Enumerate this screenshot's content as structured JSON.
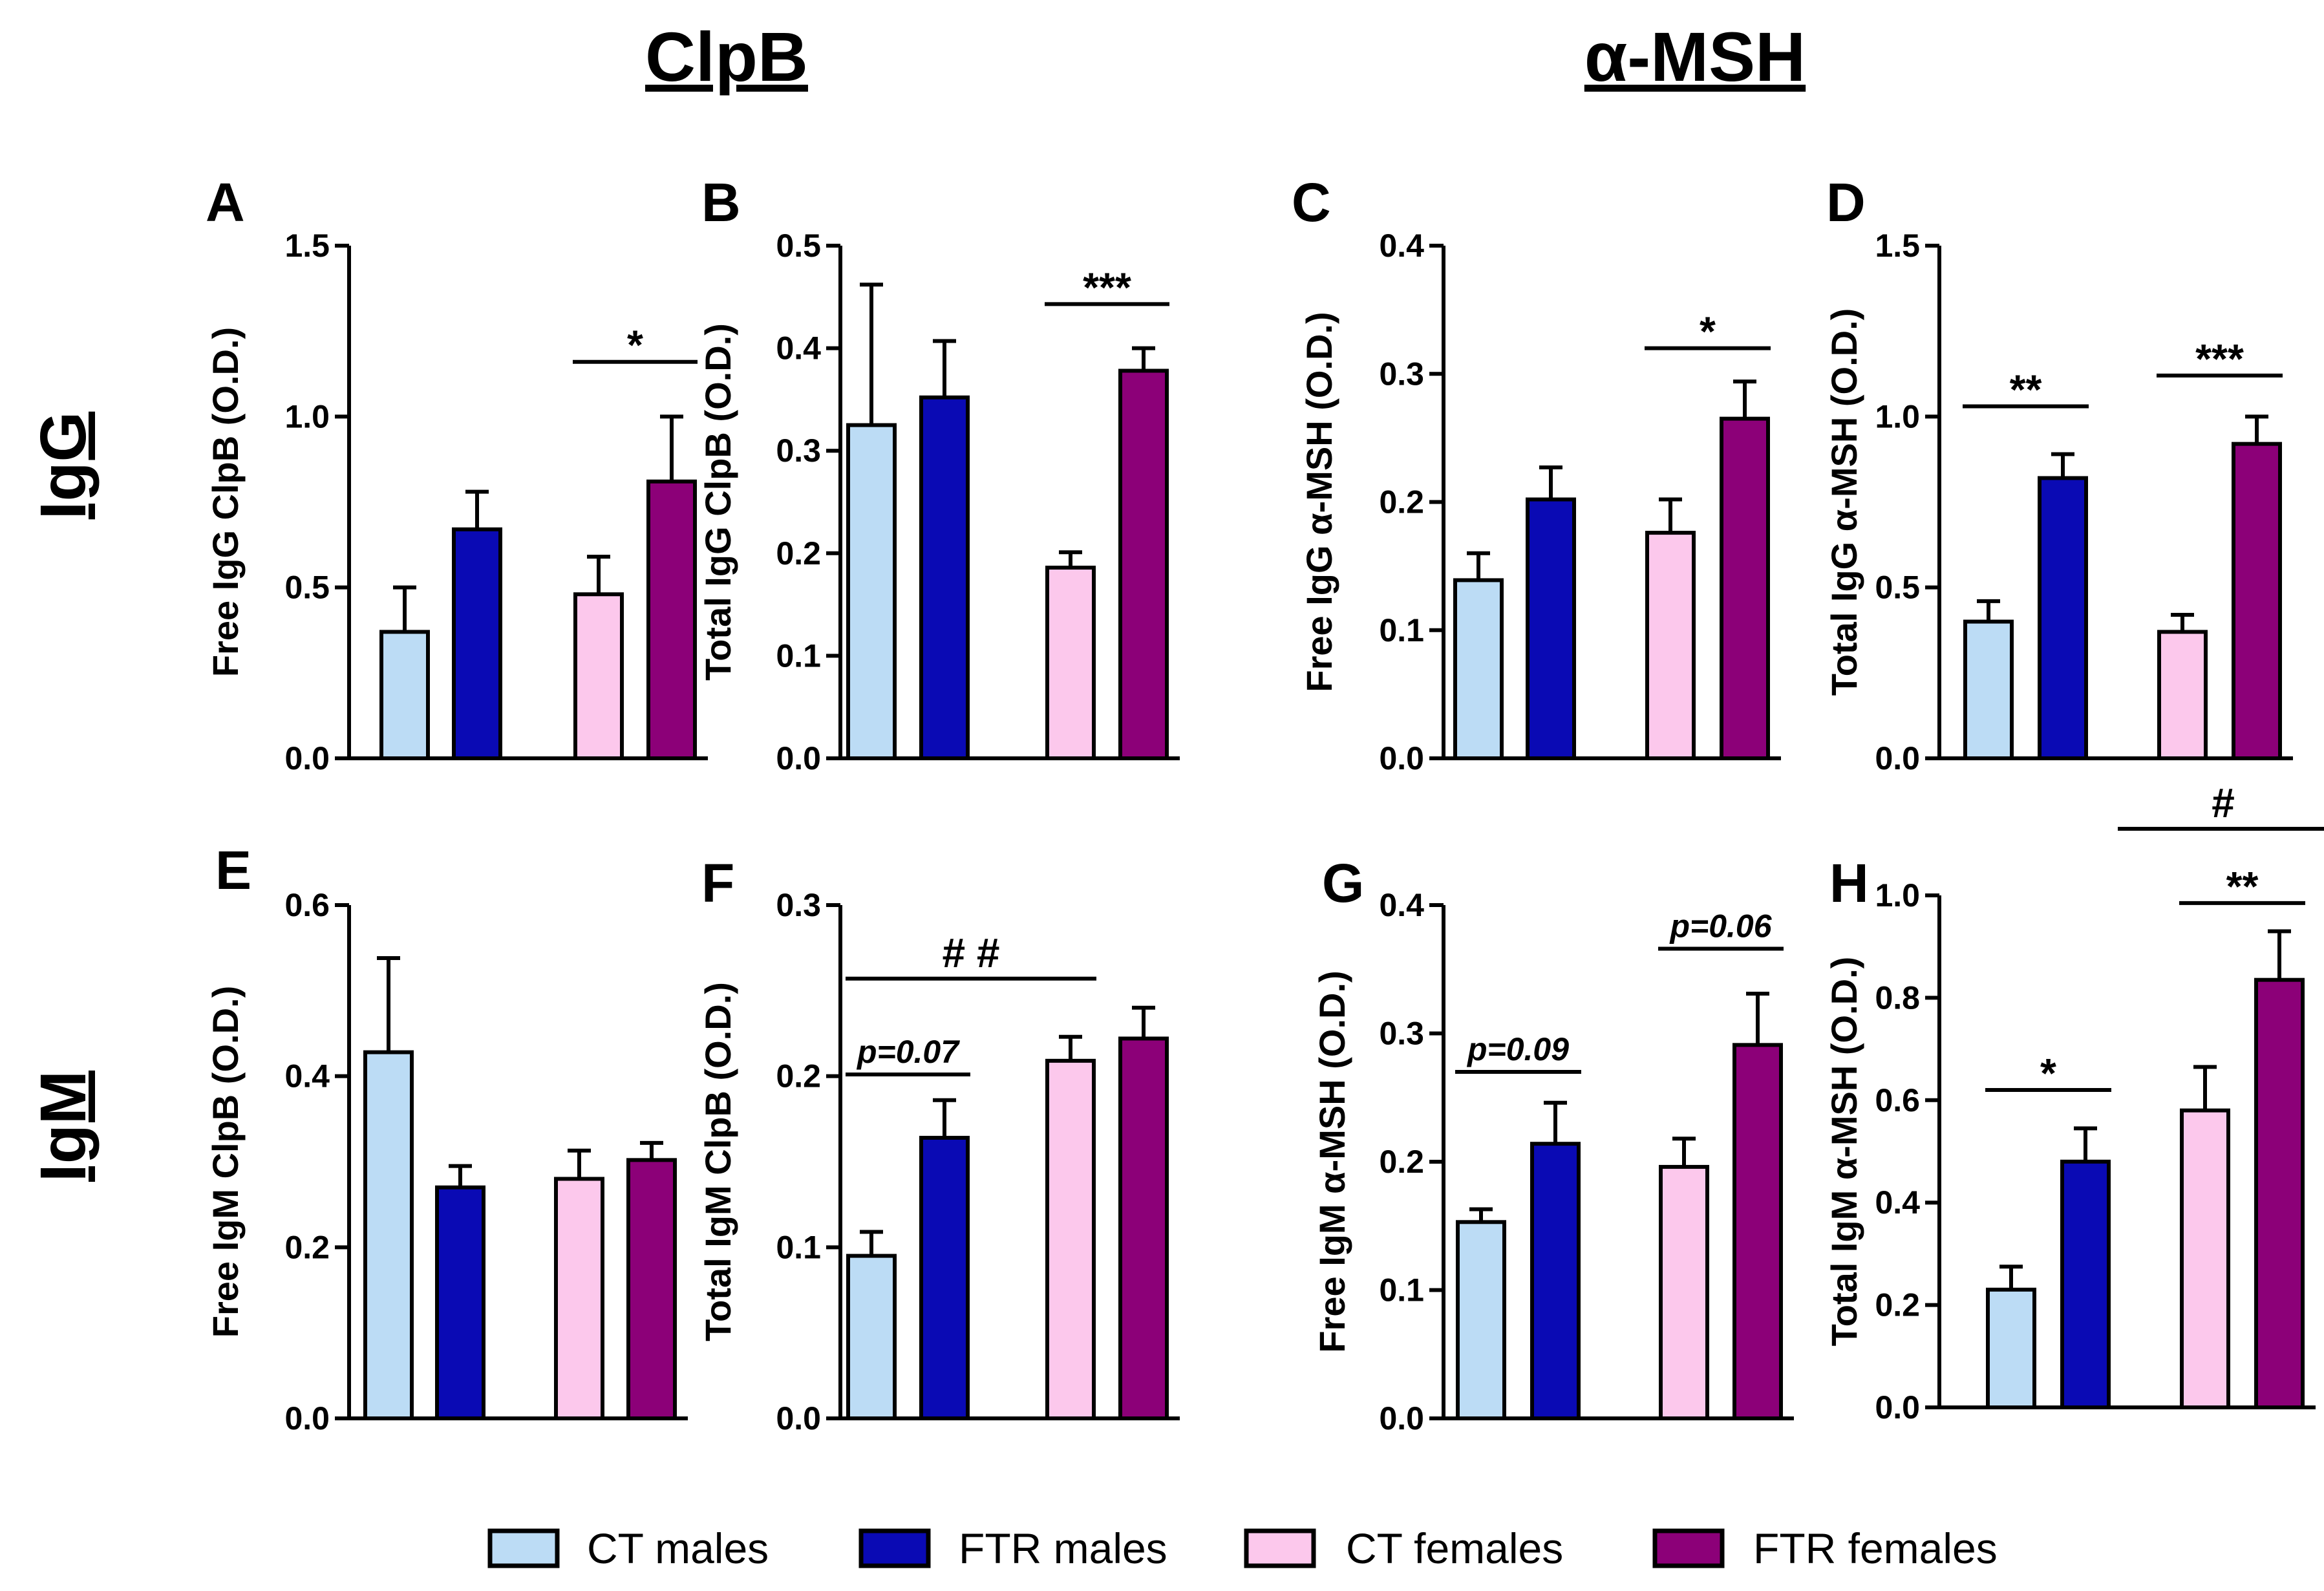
{
  "columns": {
    "left": "ClpB",
    "right": "α-MSH"
  },
  "rows": {
    "top": "IgG",
    "bottom": "IgM"
  },
  "colors": {
    "ct_males": "#bcdcf5",
    "ftr_males": "#0a0ab4",
    "ct_females": "#fcc8ec",
    "ftr_females": "#8c0078"
  },
  "legend": [
    {
      "label": "CT males",
      "color": "#bcdcf5"
    },
    {
      "label": "FTR males",
      "color": "#0a0ab4"
    },
    {
      "label": "CT females",
      "color": "#fcc8ec"
    },
    {
      "label": "FTR females",
      "color": "#8c0078"
    }
  ],
  "chart_data": [
    {
      "panel": "A",
      "type": "bar",
      "ylabel": "Free IgG ClpB (O.D.)",
      "ylim": [
        0,
        1.5
      ],
      "yticks": [
        "0.0",
        "0.5",
        "1.0",
        "1.5"
      ],
      "categories": [
        "CT males",
        "FTR males",
        "CT females",
        "FTR females"
      ],
      "values": [
        0.37,
        0.67,
        0.48,
        0.81
      ],
      "errors": [
        0.13,
        0.11,
        0.11,
        0.19
      ],
      "annotations": [
        {
          "text": "*",
          "from": 2,
          "to": 3,
          "y": 1.16
        }
      ]
    },
    {
      "panel": "B",
      "type": "bar",
      "ylabel": "Total IgG ClpB (O.D.)",
      "ylim": [
        0,
        0.5
      ],
      "yticks": [
        "0.0",
        "0.1",
        "0.2",
        "0.3",
        "0.4",
        "0.5"
      ],
      "categories": [
        "CT males",
        "FTR males",
        "CT females",
        "FTR females"
      ],
      "values": [
        0.325,
        0.352,
        0.186,
        0.378
      ],
      "errors": [
        0.137,
        0.055,
        0.015,
        0.022
      ],
      "annotations": [
        {
          "text": "***",
          "from": 2,
          "to": 3,
          "y": 0.443
        }
      ]
    },
    {
      "panel": "C",
      "type": "bar",
      "ylabel": "Free IgG α-MSH (O.D.)",
      "ylim": [
        0,
        0.4
      ],
      "yticks": [
        "0.0",
        "0.1",
        "0.2",
        "0.3",
        "0.4"
      ],
      "categories": [
        "CT males",
        "FTR males",
        "CT females",
        "FTR females"
      ],
      "values": [
        0.139,
        0.202,
        0.176,
        0.265
      ],
      "errors": [
        0.021,
        0.025,
        0.026,
        0.029
      ],
      "annotations": [
        {
          "text": "*",
          "from": 2,
          "to": 3,
          "y": 0.32
        }
      ]
    },
    {
      "panel": "D",
      "type": "bar",
      "ylabel": "Total IgG α-MSH (O.D.)",
      "ylim": [
        0,
        1.5
      ],
      "yticks": [
        "0.0",
        "0.5",
        "1.0",
        "1.5"
      ],
      "categories": [
        "CT males",
        "FTR males",
        "CT females",
        "FTR females"
      ],
      "values": [
        0.4,
        0.82,
        0.37,
        0.92
      ],
      "errors": [
        0.06,
        0.07,
        0.05,
        0.08
      ],
      "annotations": [
        {
          "text": "**",
          "from": 0,
          "to": 1,
          "y": 1.03
        },
        {
          "text": "***",
          "from": 2,
          "to": 3,
          "y": 1.12
        }
      ]
    },
    {
      "panel": "E",
      "type": "bar",
      "ylabel": "Free IgM ClpB (O.D.)",
      "ylim": [
        0,
        0.6
      ],
      "yticks": [
        "0.0",
        "0.2",
        "0.4",
        "0.6"
      ],
      "categories": [
        "CT males",
        "FTR males",
        "CT females",
        "FTR females"
      ],
      "values": [
        0.428,
        0.27,
        0.28,
        0.302
      ],
      "errors": [
        0.11,
        0.025,
        0.033,
        0.02
      ],
      "annotations": []
    },
    {
      "panel": "F",
      "type": "bar",
      "ylabel": "Total IgM ClpB (O.D.)",
      "ylim": [
        0,
        0.3
      ],
      "yticks": [
        "0.0",
        "0.1",
        "0.2",
        "0.3"
      ],
      "categories": [
        "CT males",
        "FTR males",
        "CT females",
        "FTR females"
      ],
      "values": [
        0.095,
        0.164,
        0.209,
        0.222
      ],
      "errors": [
        0.014,
        0.022,
        0.014,
        0.018
      ],
      "annotations": [
        {
          "text": "p=0.07",
          "from": 0,
          "to": 1,
          "y": 0.201,
          "italic": true
        },
        {
          "text": "# #",
          "from": 0,
          "to": 2,
          "y": 0.257
        }
      ]
    },
    {
      "panel": "G",
      "type": "bar",
      "ylabel": "Free IgM α-MSH (O.D.)",
      "ylim": [
        0,
        0.4
      ],
      "yticks": [
        "0.0",
        "0.1",
        "0.2",
        "0.3",
        "0.4"
      ],
      "categories": [
        "CT males",
        "FTR males",
        "CT females",
        "FTR females"
      ],
      "values": [
        0.153,
        0.214,
        0.196,
        0.291
      ],
      "errors": [
        0.01,
        0.032,
        0.022,
        0.04
      ],
      "annotations": [
        {
          "text": "p=0.09",
          "from": 0,
          "to": 1,
          "y": 0.27,
          "italic": true
        },
        {
          "text": "p=0.06",
          "from": 2,
          "to": 3,
          "y": 0.366,
          "italic": true
        }
      ]
    },
    {
      "panel": "H",
      "type": "bar",
      "ylabel": "Total IgM α-MSH (O.D.)",
      "ylim": [
        0,
        1.0
      ],
      "yticks": [
        "0.0",
        "0.2",
        "0.4",
        "0.6",
        "0.8",
        "1.0"
      ],
      "categories": [
        "CT males",
        "FTR males",
        "CT females",
        "FTR females"
      ],
      "values": [
        0.23,
        0.48,
        0.58,
        0.835
      ],
      "errors": [
        0.045,
        0.065,
        0.085,
        0.095
      ],
      "annotations": [
        {
          "text": "*",
          "from": 0,
          "to": 1,
          "y": 0.62
        },
        {
          "text": "**",
          "from": 2,
          "to": 3,
          "y": 0.985
        },
        {
          "text": "#",
          "from": 1.5,
          "to": 4,
          "y": 1.13
        }
      ]
    }
  ]
}
